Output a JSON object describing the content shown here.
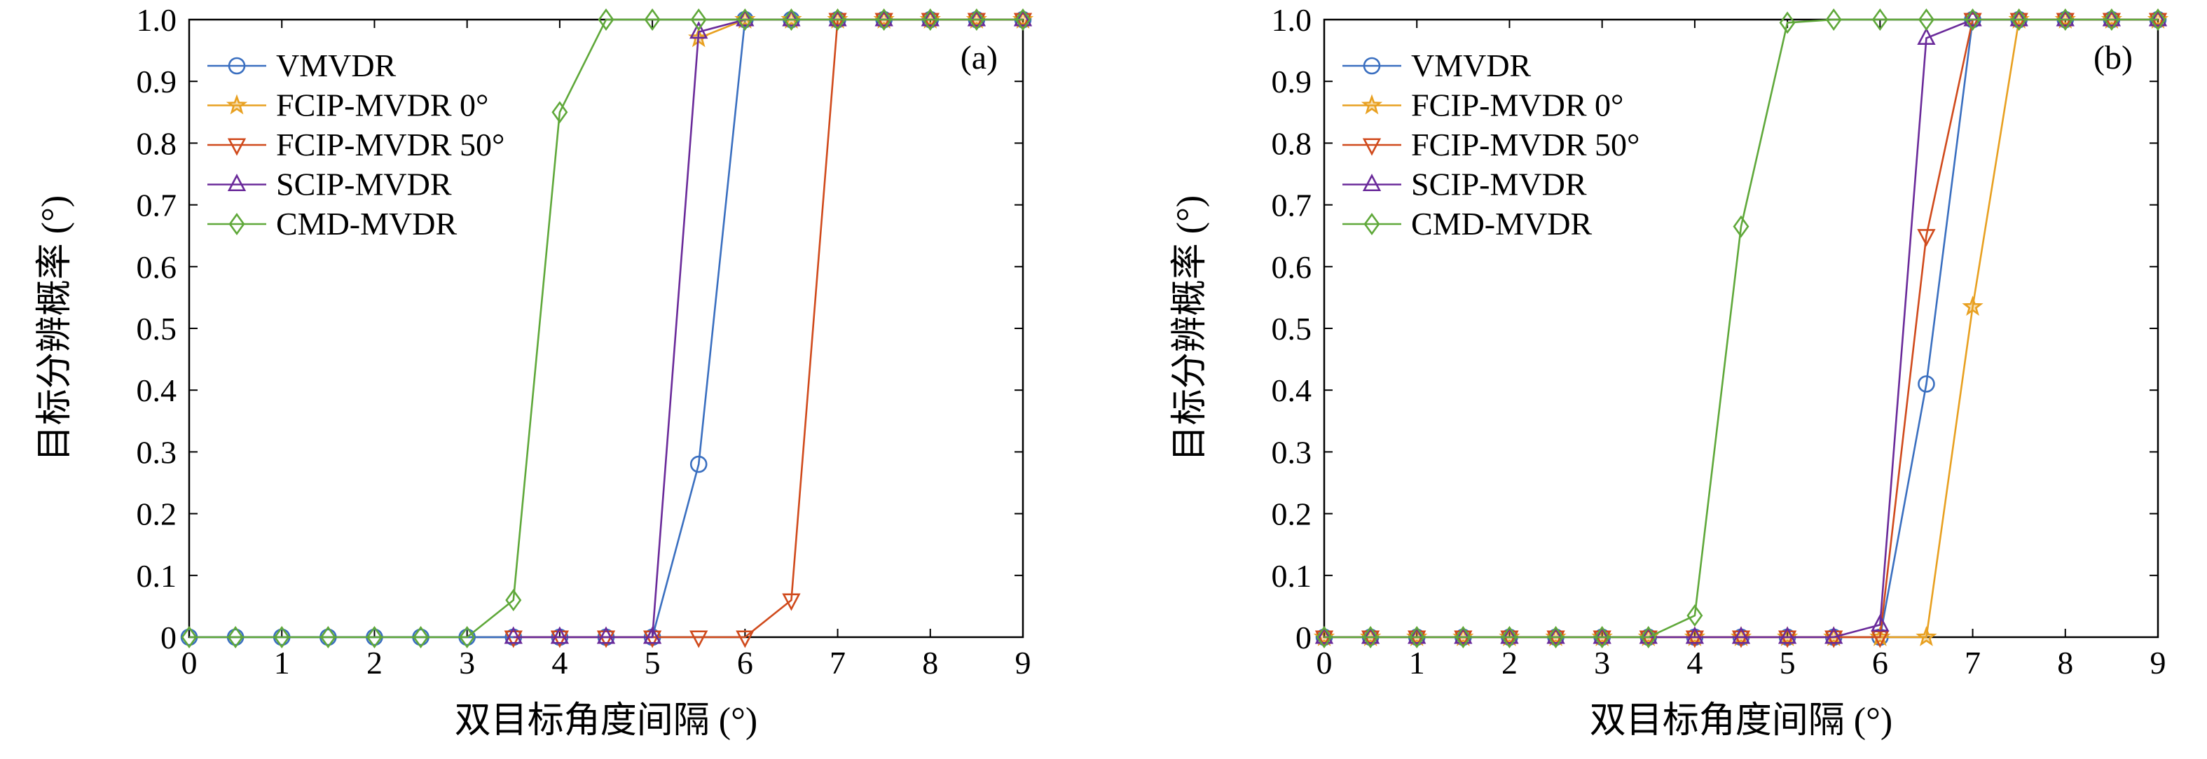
{
  "chart_data": [
    {
      "type": "line",
      "panel_label": "(a)",
      "xlabel": "双目标角度间隔 (°)",
      "ylabel": "目标分辨概率 (°)",
      "xlim": [
        0,
        9
      ],
      "ylim": [
        0,
        1.0
      ],
      "xticks": [
        "0",
        "1",
        "2",
        "3",
        "4",
        "5",
        "6",
        "7",
        "8",
        "9"
      ],
      "yticks": [
        "0",
        "0.1",
        "0.2",
        "0.3",
        "0.4",
        "0.5",
        "0.6",
        "0.7",
        "0.8",
        "0.9",
        "1.0"
      ],
      "legend_position": "top-left",
      "grid": false,
      "series": [
        {
          "name": "VMVDR",
          "color": "#3a6fc0",
          "marker": "circle",
          "points": [
            [
              0,
              0
            ],
            [
              0.5,
              0
            ],
            [
              1,
              0
            ],
            [
              1.5,
              0
            ],
            [
              2,
              0
            ],
            [
              2.5,
              0
            ],
            [
              3,
              0
            ],
            [
              3.5,
              0
            ],
            [
              4,
              0
            ],
            [
              4.5,
              0
            ],
            [
              5,
              0
            ],
            [
              5.5,
              0.28
            ],
            [
              6,
              1
            ],
            [
              6.5,
              1
            ],
            [
              7,
              1
            ],
            [
              7.5,
              1
            ],
            [
              8,
              1
            ],
            [
              8.5,
              1
            ],
            [
              9,
              1
            ]
          ]
        },
        {
          "name": "FCIP-MVDR 0°",
          "color": "#e8a020",
          "marker": "star",
          "points": [
            [
              5.5,
              0.97
            ],
            [
              6,
              1
            ],
            [
              6.5,
              1
            ],
            [
              7,
              1
            ],
            [
              7.5,
              1
            ],
            [
              8,
              1
            ],
            [
              8.5,
              1
            ],
            [
              9,
              1
            ]
          ]
        },
        {
          "name": "FCIP-MVDR 50°",
          "color": "#d04a1c",
          "marker": "triangle-down",
          "points": [
            [
              3.5,
              0
            ],
            [
              4,
              0
            ],
            [
              4.5,
              0
            ],
            [
              5,
              0
            ],
            [
              5.5,
              0
            ],
            [
              6,
              0
            ],
            [
              6.5,
              0.06
            ],
            [
              7,
              1
            ],
            [
              7.5,
              1
            ],
            [
              8,
              1
            ],
            [
              8.5,
              1
            ],
            [
              9,
              1
            ]
          ]
        },
        {
          "name": "SCIP-MVDR",
          "color": "#6a2a9a",
          "marker": "triangle-up",
          "points": [
            [
              3.5,
              0
            ],
            [
              4,
              0
            ],
            [
              4.5,
              0
            ],
            [
              5,
              0
            ],
            [
              5.5,
              0.98
            ],
            [
              6,
              1
            ],
            [
              6.5,
              1
            ],
            [
              7,
              1
            ],
            [
              7.5,
              1
            ],
            [
              8,
              1
            ],
            [
              8.5,
              1
            ],
            [
              9,
              1
            ]
          ]
        },
        {
          "name": "CMD-MVDR",
          "color": "#5fa83a",
          "marker": "diamond",
          "points": [
            [
              0,
              0
            ],
            [
              0.5,
              0
            ],
            [
              1,
              0
            ],
            [
              1.5,
              0
            ],
            [
              2,
              0
            ],
            [
              2.5,
              0
            ],
            [
              3,
              0
            ],
            [
              3.5,
              0.06
            ],
            [
              4,
              0.85
            ],
            [
              4.5,
              1
            ],
            [
              5,
              1
            ],
            [
              5.5,
              1
            ],
            [
              6,
              1
            ],
            [
              6.5,
              1
            ],
            [
              7,
              1
            ],
            [
              7.5,
              1
            ],
            [
              8,
              1
            ],
            [
              8.5,
              1
            ],
            [
              9,
              1
            ]
          ]
        }
      ]
    },
    {
      "type": "line",
      "panel_label": "(b)",
      "xlabel": "双目标角度间隔 (°)",
      "ylabel": "目标分辨概率 (°)",
      "xlim": [
        0,
        9
      ],
      "ylim": [
        0,
        1.0
      ],
      "xticks": [
        "0",
        "1",
        "2",
        "3",
        "4",
        "5",
        "6",
        "7",
        "8",
        "9"
      ],
      "yticks": [
        "0",
        "0.1",
        "0.2",
        "0.3",
        "0.4",
        "0.5",
        "0.6",
        "0.7",
        "0.8",
        "0.9",
        "1.0"
      ],
      "legend_position": "top-left",
      "grid": false,
      "series": [
        {
          "name": "VMVDR",
          "color": "#3a6fc0",
          "marker": "circle",
          "points": [
            [
              0,
              0
            ],
            [
              0.5,
              0
            ],
            [
              1,
              0
            ],
            [
              1.5,
              0
            ],
            [
              2,
              0
            ],
            [
              2.5,
              0
            ],
            [
              3,
              0
            ],
            [
              3.5,
              0
            ],
            [
              4,
              0
            ],
            [
              4.5,
              0
            ],
            [
              5,
              0
            ],
            [
              5.5,
              0
            ],
            [
              6,
              0
            ],
            [
              6.5,
              0.41
            ],
            [
              7,
              1
            ],
            [
              7.5,
              1
            ],
            [
              8,
              1
            ],
            [
              8.5,
              1
            ],
            [
              9,
              1
            ]
          ]
        },
        {
          "name": "FCIP-MVDR 0°",
          "color": "#e8a020",
          "marker": "star",
          "points": [
            [
              0,
              0
            ],
            [
              0.5,
              0
            ],
            [
              1,
              0
            ],
            [
              1.5,
              0
            ],
            [
              2,
              0
            ],
            [
              2.5,
              0
            ],
            [
              3,
              0
            ],
            [
              3.5,
              0
            ],
            [
              4,
              0
            ],
            [
              4.5,
              0
            ],
            [
              5,
              0
            ],
            [
              5.5,
              0
            ],
            [
              6,
              0
            ],
            [
              6.5,
              0
            ],
            [
              7,
              0.535
            ],
            [
              7.5,
              1
            ],
            [
              8,
              1
            ],
            [
              8.5,
              1
            ],
            [
              9,
              1
            ]
          ]
        },
        {
          "name": "FCIP-MVDR 50°",
          "color": "#d04a1c",
          "marker": "triangle-down",
          "points": [
            [
              0,
              0
            ],
            [
              0.5,
              0
            ],
            [
              1,
              0
            ],
            [
              1.5,
              0
            ],
            [
              2,
              0
            ],
            [
              2.5,
              0
            ],
            [
              3,
              0
            ],
            [
              3.5,
              0
            ],
            [
              4,
              0
            ],
            [
              4.5,
              0
            ],
            [
              5,
              0
            ],
            [
              5.5,
              0
            ],
            [
              6,
              0
            ],
            [
              6.5,
              0.65
            ],
            [
              7,
              1
            ],
            [
              7.5,
              1
            ],
            [
              8,
              1
            ],
            [
              8.5,
              1
            ],
            [
              9,
              1
            ]
          ]
        },
        {
          "name": "SCIP-MVDR",
          "color": "#6a2a9a",
          "marker": "triangle-up",
          "points": [
            [
              0,
              0
            ],
            [
              0.5,
              0
            ],
            [
              1,
              0
            ],
            [
              1.5,
              0
            ],
            [
              2,
              0
            ],
            [
              2.5,
              0
            ],
            [
              3,
              0
            ],
            [
              3.5,
              0
            ],
            [
              4,
              0
            ],
            [
              4.5,
              0
            ],
            [
              5,
              0
            ],
            [
              5.5,
              0
            ],
            [
              6,
              0.02
            ],
            [
              6.5,
              0.97
            ],
            [
              7,
              1
            ],
            [
              7.5,
              1
            ],
            [
              8,
              1
            ],
            [
              8.5,
              1
            ],
            [
              9,
              1
            ]
          ]
        },
        {
          "name": "CMD-MVDR",
          "color": "#5fa83a",
          "marker": "diamond",
          "points": [
            [
              0,
              0
            ],
            [
              0.5,
              0
            ],
            [
              1,
              0
            ],
            [
              1.5,
              0
            ],
            [
              2,
              0
            ],
            [
              2.5,
              0
            ],
            [
              3,
              0
            ],
            [
              3.5,
              0
            ],
            [
              4,
              0.035
            ],
            [
              4.5,
              0.665
            ],
            [
              5,
              0.995
            ],
            [
              5.5,
              1
            ],
            [
              6,
              1
            ],
            [
              6.5,
              1
            ],
            [
              7,
              1
            ],
            [
              7.5,
              1
            ],
            [
              8,
              1
            ],
            [
              8.5,
              1
            ],
            [
              9,
              1
            ]
          ]
        }
      ]
    }
  ]
}
